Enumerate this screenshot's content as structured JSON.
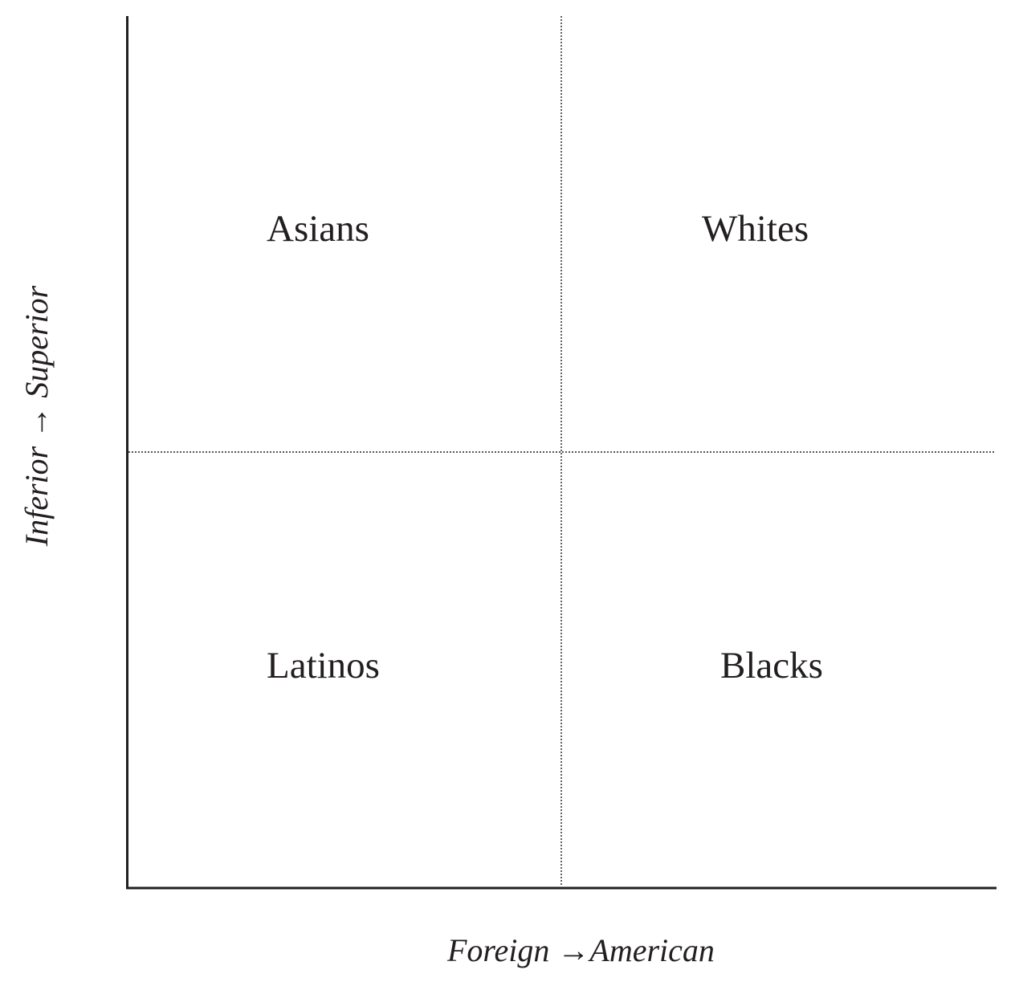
{
  "diagram": {
    "quadrants": {
      "top_left": "Asians",
      "top_right": "Whites",
      "bottom_left": "Latinos",
      "bottom_right": "Blacks"
    },
    "x_axis": {
      "from": "Foreign",
      "arrow": "→",
      "to": "American"
    },
    "y_axis": {
      "from": "Inferior",
      "arrow": "→",
      "to": "Superior"
    },
    "colors": {
      "ink": "#231f20",
      "background": "#ffffff"
    }
  }
}
